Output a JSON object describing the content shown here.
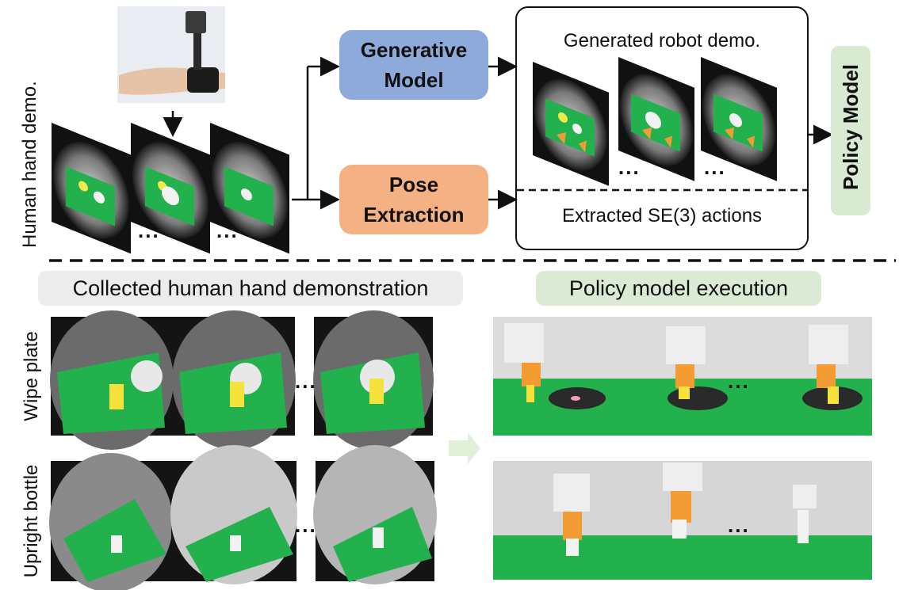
{
  "top": {
    "side_label": "Human hand demo.",
    "generative_model": "Generative\nModel",
    "pose_extraction": "Pose\nExtraction",
    "generated_label": "Generated robot demo.",
    "extracted_label": "Extracted SE(3) actions",
    "policy_model": "Policy Model",
    "ellipsis": "..."
  },
  "bottom": {
    "collected_label": "Collected human hand demonstration",
    "execution_label": "Policy model execution",
    "rows": [
      {
        "label": "Wipe plate"
      },
      {
        "label": "Upright bottle"
      }
    ],
    "ellipsis": "..."
  },
  "colors": {
    "generative": "#8eaadb",
    "pose": "#f4b183",
    "policy": "#d9ead3",
    "collected_pill": "#ececec",
    "execution_pill": "#dbead4",
    "green_mat": "#23b14d",
    "arrow_hint": "#e2f0d9"
  }
}
